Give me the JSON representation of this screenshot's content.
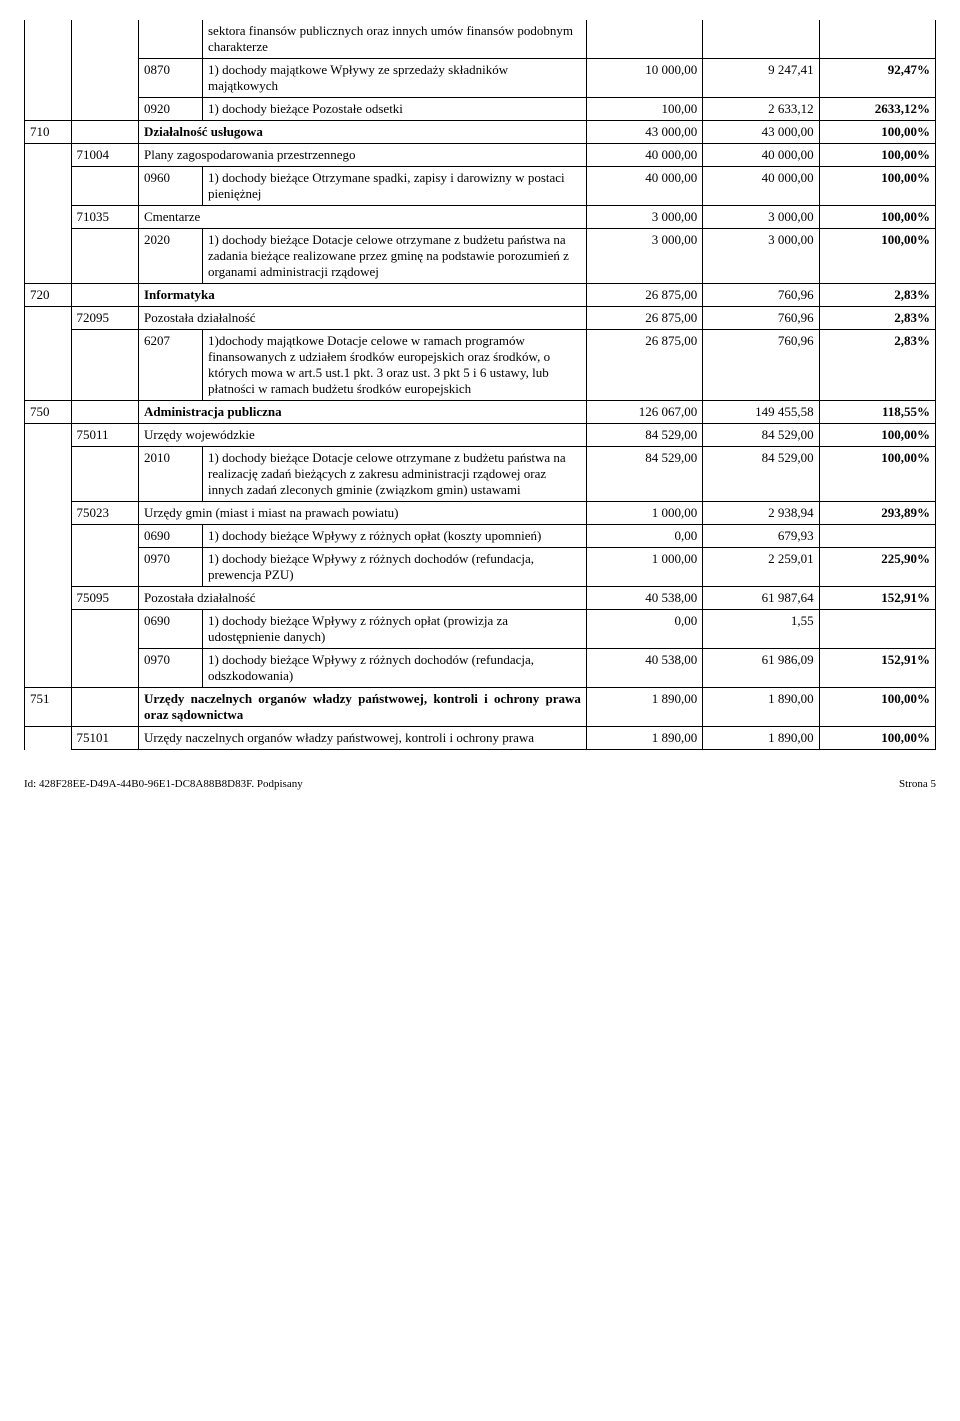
{
  "footer": {
    "id": "Id: 428F28EE-D49A-44B0-96E1-DC8A88B8D83F. Podpisany",
    "page": "Strona 5"
  },
  "rows": [
    {
      "c1": "",
      "c2": "",
      "c3": "",
      "c4": "sektora finansów publicznych oraz innych umów finansów podobnym charakterze",
      "c5": "",
      "c6": "",
      "c7": "",
      "cls": {
        "c1": "no-tb",
        "c2": "no-tb",
        "c3": "no-top",
        "c4": "no-top",
        "c5": "no-tb",
        "c6": "no-tb",
        "c7": "no-tb"
      }
    },
    {
      "c1": "",
      "c2": "",
      "c3": "0870",
      "c4": "1) dochody majątkowe\nWpływy ze sprzedaży składników majątkowych",
      "c5": "10 000,00",
      "c6": "9 247,41",
      "c7": "92,47%",
      "cls": {
        "c1": "no-tb",
        "c2": "no-tb"
      }
    },
    {
      "c1": "",
      "c2": "",
      "c3": "0920",
      "c4": "1) dochody bieżące\nPozostałe odsetki",
      "c5": "100,00",
      "c6": "2 633,12",
      "c7": "2633,12%",
      "cls": {
        "c1": "no-tb",
        "c2": "no-top"
      }
    },
    {
      "c1": "710",
      "c2": "",
      "c3": "",
      "c4": "Działalność usługowa",
      "c5": "43 000,00",
      "c6": "43 000,00",
      "c7": "100,00%",
      "span34": true,
      "cls": {
        "c4": "bold"
      }
    },
    {
      "c1": "",
      "c2": "71004",
      "c3": "",
      "c4": "Plany zagospodarowania przestrzennego",
      "c5": "40 000,00",
      "c6": "40 000,00",
      "c7": "100,00%",
      "span34": true,
      "cls": {
        "c1": "no-bottom"
      }
    },
    {
      "c1": "",
      "c2": "",
      "c3": "0960",
      "c4": "1) dochody bieżące\nOtrzymane spadki, zapisy i darowizny w postaci pieniężnej",
      "c5": "40 000,00",
      "c6": "40 000,00",
      "c7": "100,00%",
      "cls": {
        "c1": "no-tb",
        "c2": "no-bottom"
      }
    },
    {
      "c1": "",
      "c2": "71035",
      "c3": "",
      "c4": "Cmentarze",
      "c5": "3 000,00",
      "c6": "3 000,00",
      "c7": "100,00%",
      "span34": true,
      "cls": {
        "c1": "no-tb"
      }
    },
    {
      "c1": "",
      "c2": "",
      "c3": "2020",
      "c4": "1) dochody bieżące\nDotacje celowe otrzymane z budżetu państwa na zadania bieżące realizowane przez gminę na podstawie porozumień z organami administracji rządowej",
      "c5": "3 000,00",
      "c6": "3 000,00",
      "c7": "100,00%",
      "cls": {
        "c1": "no-top",
        "c2": "no-top"
      }
    },
    {
      "c1": "720",
      "c2": "",
      "c3": "",
      "c4": "Informatyka",
      "c5": "26 875,00",
      "c6": "760,96",
      "c7": "2,83%",
      "span34": true,
      "cls": {
        "c4": "bold"
      }
    },
    {
      "c1": "",
      "c2": "72095",
      "c3": "",
      "c4": "Pozostała działalność",
      "c5": "26 875,00",
      "c6": "760,96",
      "c7": "2,83%",
      "span34": true,
      "cls": {
        "c1": "no-bottom"
      }
    },
    {
      "c1": "",
      "c2": "",
      "c3": "6207",
      "c4": "1)dochody majątkowe\nDotacje celowe w ramach programów finansowanych z udziałem środków europejskich oraz środków, o których mowa w art.5 ust.1 pkt. 3 oraz ust. 3 pkt 5 i 6 ustawy, lub płatności w ramach budżetu środków europejskich",
      "c5": "26 875,00",
      "c6": "760,96",
      "c7": "2,83%",
      "cls": {
        "c1": "no-top",
        "c2": "no-top"
      }
    },
    {
      "c1": "750",
      "c2": "",
      "c3": "",
      "c4": "Administracja publiczna",
      "c5": "126 067,00",
      "c6": "149 455,58",
      "c7": "118,55%",
      "span34": true,
      "cls": {
        "c4": "bold"
      }
    },
    {
      "c1": "",
      "c2": "75011",
      "c3": "",
      "c4": "Urzędy wojewódzkie",
      "c5": "84 529,00",
      "c6": "84 529,00",
      "c7": "100,00%",
      "span34": true,
      "cls": {
        "c1": "no-bottom"
      }
    },
    {
      "c1": "",
      "c2": "",
      "c3": "2010",
      "c4": "1) dochody bieżące\nDotacje celowe otrzymane z budżetu państwa na realizację zadań bieżących z zakresu administracji rządowej oraz innych zadań zleconych gminie (związkom gmin) ustawami",
      "c5": "84 529,00",
      "c6": "84 529,00",
      "c7": "100,00%",
      "cls": {
        "c1": "no-tb",
        "c2": "no-bottom"
      }
    },
    {
      "c1": "",
      "c2": "75023",
      "c3": "",
      "c4": "Urzędy gmin (miast i miast na prawach powiatu)",
      "c5": "1 000,00",
      "c6": "2 938,94",
      "c7": "293,89%",
      "span34": true,
      "cls": {
        "c1": "no-tb",
        "c4": "justify"
      }
    },
    {
      "c1": "",
      "c2": "",
      "c3": "0690",
      "c4": "1) dochody bieżące\nWpływy z różnych opłat (koszty upomnień)",
      "c5": "0,00",
      "c6": "679,93",
      "c7": "",
      "cls": {
        "c1": "no-tb",
        "c2": "no-tb"
      }
    },
    {
      "c1": "",
      "c2": "",
      "c3": "0970",
      "c4": "1) dochody bieżące\nWpływy z różnych dochodów (refundacja, prewencja PZU)",
      "c5": "1 000,00",
      "c6": "2 259,01",
      "c7": "225,90%",
      "cls": {
        "c1": "no-tb",
        "c2": "no-top"
      }
    },
    {
      "c1": "",
      "c2": "75095",
      "c3": "",
      "c4": "Pozostała działalność",
      "c5": "40 538,00",
      "c6": "61 987,64",
      "c7": "152,91%",
      "span34": true,
      "cls": {
        "c1": "no-tb"
      }
    },
    {
      "c1": "",
      "c2": "",
      "c3": "0690",
      "c4": "1) dochody bieżące\nWpływy z różnych opłat (prowizja za udostępnienie danych)",
      "c5": "0,00",
      "c6": "1,55",
      "c7": "",
      "cls": {
        "c1": "no-tb",
        "c2": "no-tb"
      }
    },
    {
      "c1": "",
      "c2": "",
      "c3": "0970",
      "c4": "1) dochody bieżące\nWpływy z różnych dochodów (refundacja, odszkodowania)",
      "c5": "40 538,00",
      "c6": "61 986,09",
      "c7": "152,91%",
      "cls": {
        "c1": "no-top",
        "c2": "no-top"
      }
    },
    {
      "c1": "751",
      "c2": "",
      "c3": "",
      "c4": "Urzędy naczelnych organów władzy państwowej, kontroli i ochrony prawa oraz sądownictwa",
      "c5": "1 890,00",
      "c6": "1 890,00",
      "c7": "100,00%",
      "span34": true,
      "cls": {
        "c4": "bold justify"
      }
    },
    {
      "c1": "",
      "c2": "75101",
      "c3": "",
      "c4": "Urzędy naczelnych organów władzy państwowej, kontroli i ochrony prawa",
      "c5": "1 890,00",
      "c6": "1 890,00",
      "c7": "100,00%",
      "span34": true,
      "cls": {
        "c1": "no-bottom",
        "c4": "justify"
      }
    }
  ]
}
